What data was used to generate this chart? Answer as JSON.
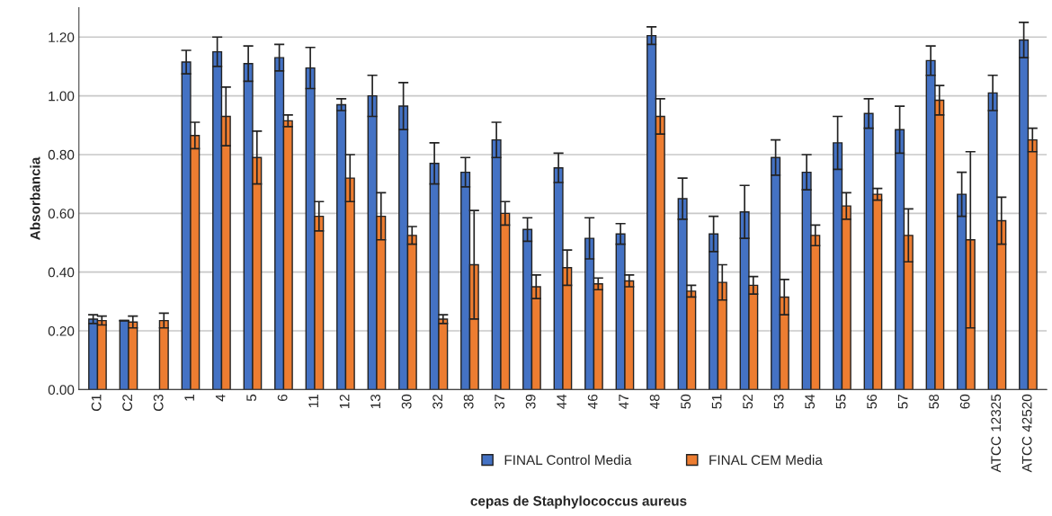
{
  "chart_data": {
    "type": "bar",
    "xlabel": "cepas de Staphylococcus aureus",
    "ylabel": "Absorbancia",
    "categories": [
      "C1",
      "C2",
      "C3",
      "1",
      "4",
      "5",
      "6",
      "11",
      "12",
      "13",
      "30",
      "32",
      "38",
      "37",
      "39",
      "44",
      "46",
      "47",
      "48",
      "50",
      "51",
      "52",
      "53",
      "54",
      "55",
      "56",
      "57",
      "58",
      "60",
      "ATCC 12325",
      "ATCC 42520"
    ],
    "series": [
      {
        "name": "FINAL Control Media",
        "color": "#4472c4",
        "values": [
          0.24,
          0.235,
          null,
          1.115,
          1.15,
          1.11,
          1.13,
          1.095,
          0.97,
          1.0,
          0.965,
          0.77,
          0.74,
          0.85,
          0.545,
          0.755,
          0.515,
          0.53,
          1.205,
          0.65,
          0.53,
          0.605,
          0.79,
          0.74,
          0.84,
          0.94,
          0.885,
          1.12,
          0.665,
          1.01,
          1.19
        ],
        "errors": [
          0.015,
          0.0,
          null,
          0.04,
          0.05,
          0.06,
          0.045,
          0.07,
          0.02,
          0.07,
          0.08,
          0.07,
          0.05,
          0.06,
          0.04,
          0.05,
          0.07,
          0.035,
          0.03,
          0.07,
          0.06,
          0.09,
          0.06,
          0.06,
          0.09,
          0.05,
          0.08,
          0.05,
          0.075,
          0.06,
          0.06
        ]
      },
      {
        "name": "FINAL CEM Media",
        "color": "#ed7d31",
        "values": [
          0.235,
          0.23,
          0.235,
          0.865,
          0.93,
          0.79,
          0.915,
          0.59,
          0.72,
          0.59,
          0.525,
          0.24,
          0.425,
          0.6,
          0.35,
          0.415,
          0.36,
          0.37,
          0.93,
          0.335,
          0.365,
          0.355,
          0.315,
          0.525,
          0.625,
          0.665,
          0.525,
          0.985,
          0.51,
          0.575,
          0.85
        ],
        "errors": [
          0.015,
          0.02,
          0.025,
          0.045,
          0.1,
          0.09,
          0.02,
          0.05,
          0.08,
          0.08,
          0.03,
          0.015,
          0.185,
          0.04,
          0.04,
          0.06,
          0.02,
          0.02,
          0.06,
          0.02,
          0.06,
          0.03,
          0.06,
          0.035,
          0.045,
          0.02,
          0.09,
          0.05,
          0.3,
          0.08,
          0.04
        ]
      }
    ],
    "ylim": [
      0,
      1.3
    ],
    "yticks": [
      {
        "value": 0,
        "label": "0.00"
      },
      {
        "value": 0.2,
        "label": "0.20"
      },
      {
        "value": 0.4,
        "label": "0.40"
      },
      {
        "value": 0.6,
        "label": "0.60"
      },
      {
        "value": 0.8,
        "label": "0.80"
      },
      {
        "value": 1.0,
        "label": "1.00"
      },
      {
        "value": 1.2,
        "label": "1.20"
      }
    ],
    "grid": "y",
    "legend": "bottom"
  }
}
